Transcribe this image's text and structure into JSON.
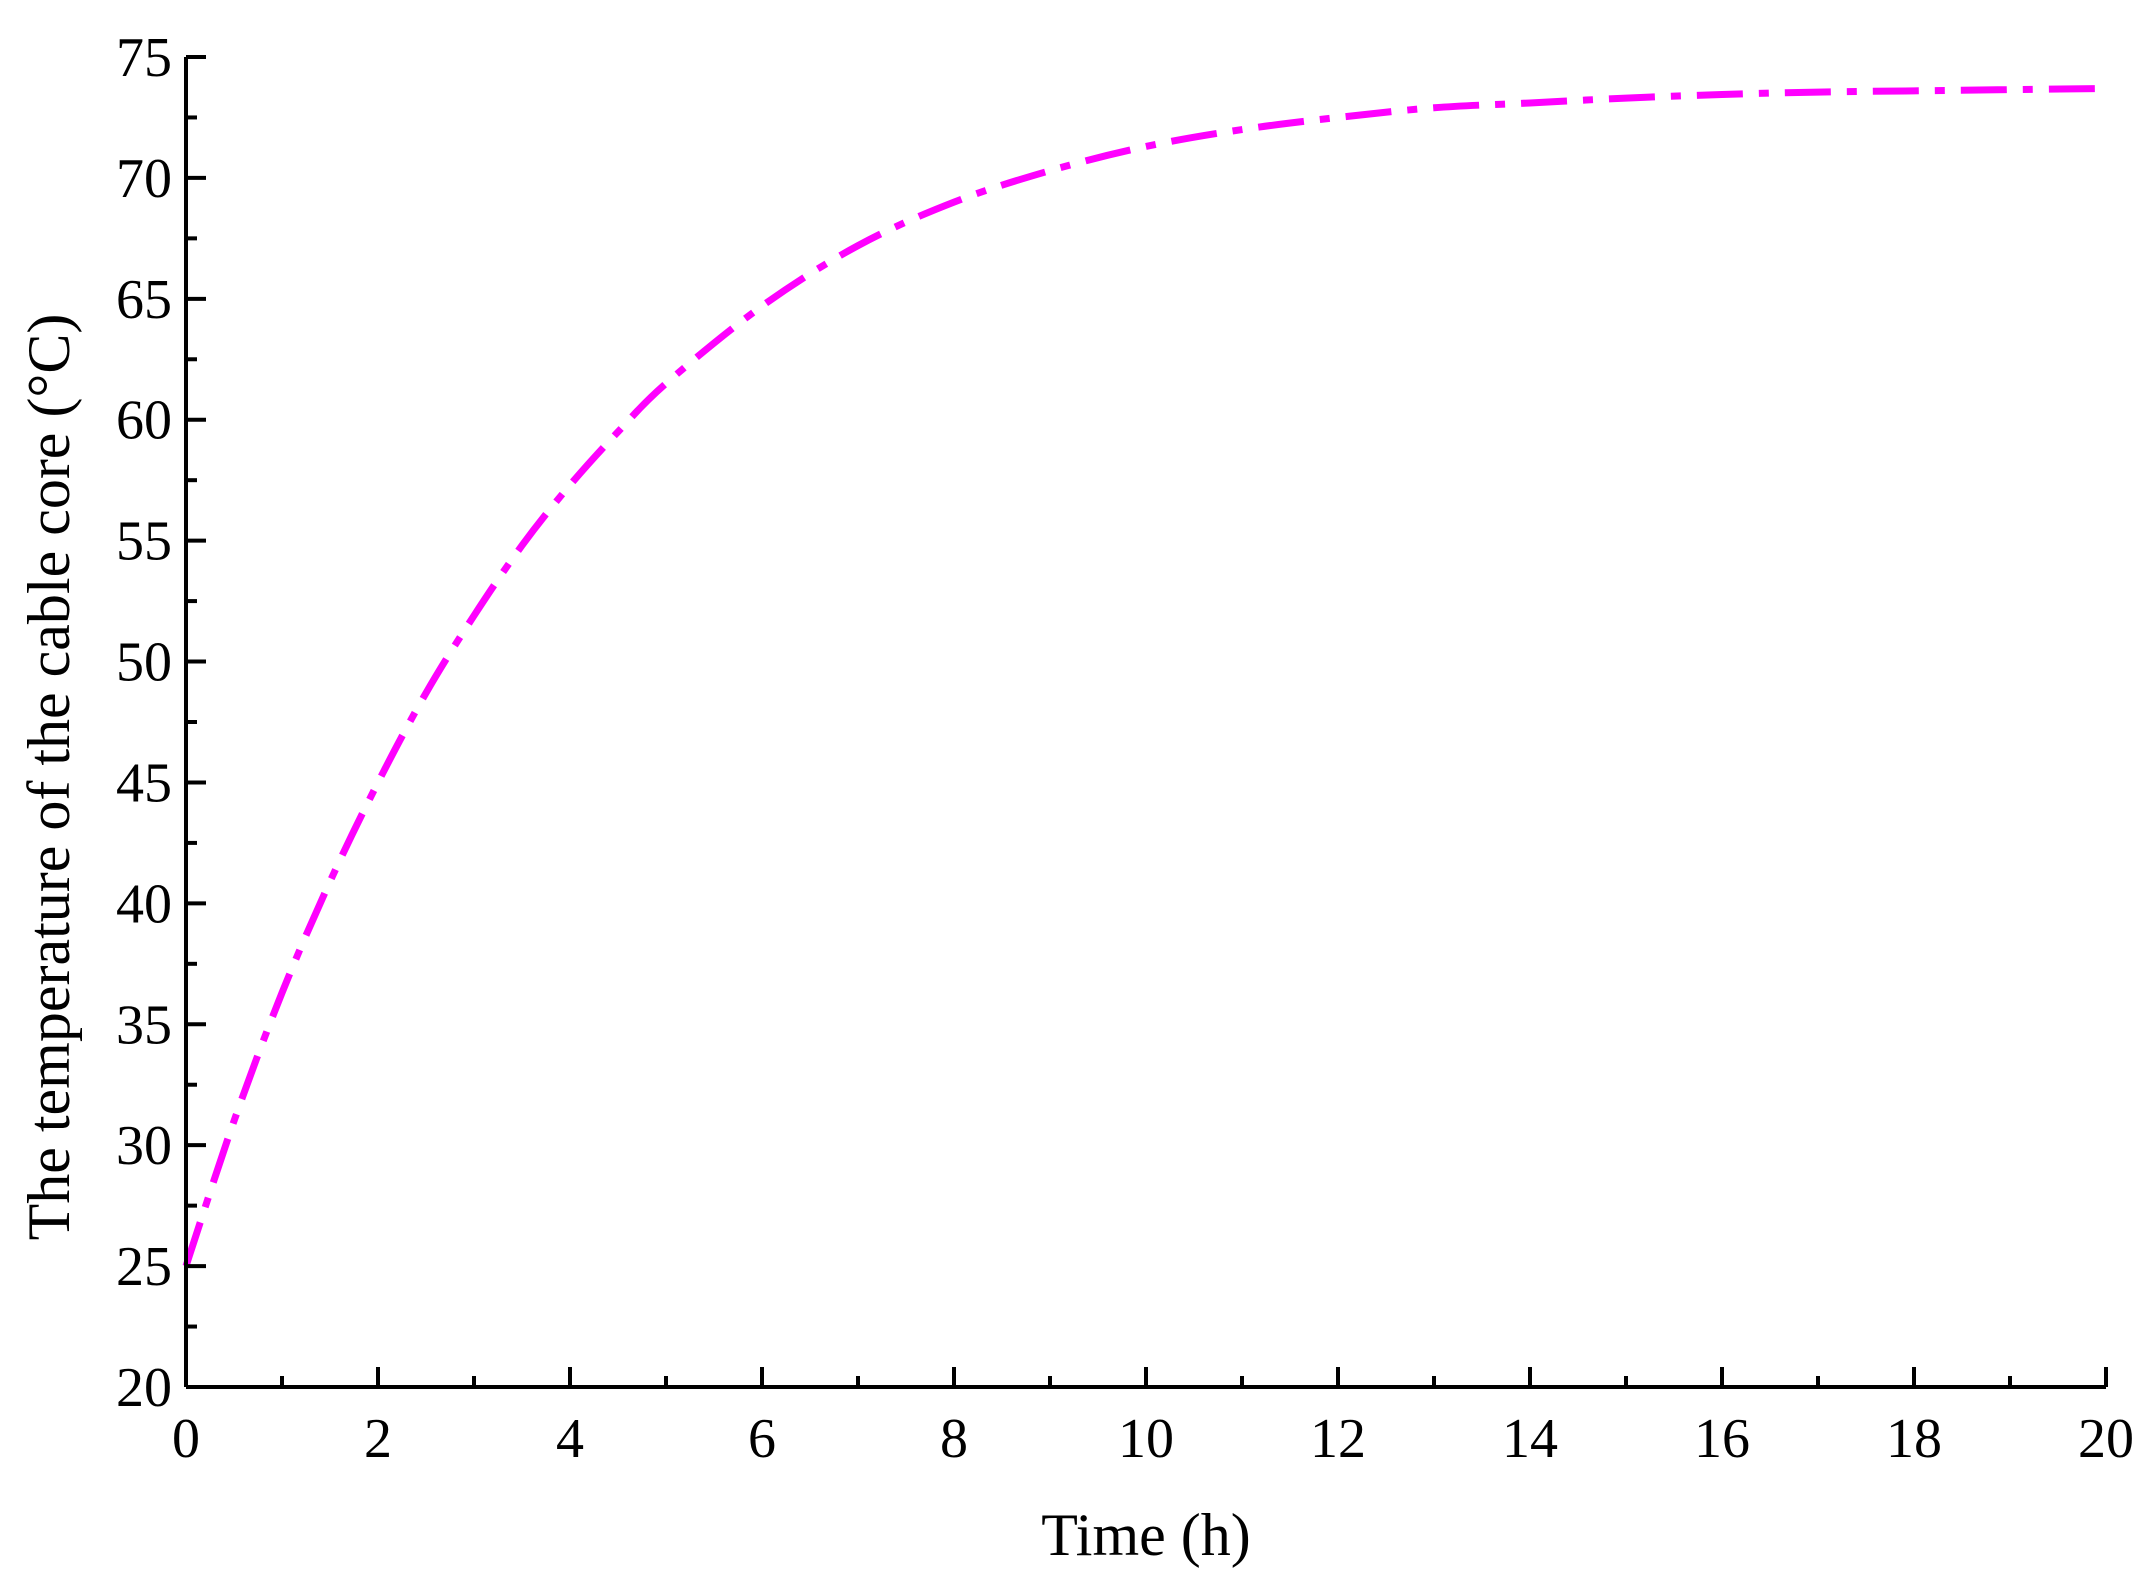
{
  "chart_data": {
    "type": "line",
    "xlabel": "Time (h)",
    "ylabel": "The temperature of the cable core (°C)",
    "xlim": [
      0,
      20
    ],
    "ylim": [
      20,
      75
    ],
    "xticks": [
      0,
      2,
      4,
      6,
      8,
      10,
      12,
      14,
      16,
      18,
      20
    ],
    "yticks": [
      20,
      25,
      30,
      35,
      40,
      45,
      50,
      55,
      60,
      65,
      70,
      75
    ],
    "grid": false,
    "legend": "none",
    "series": [
      {
        "color": "#ff00ff",
        "line_style": "dash-dot",
        "x": [
          0,
          0.5,
          1,
          1.5,
          2,
          2.5,
          3,
          3.5,
          4,
          4.5,
          5,
          6,
          7,
          8,
          9,
          10,
          11,
          12,
          13,
          14,
          15,
          16,
          17,
          18,
          19,
          20
        ],
        "y": [
          25.0,
          31.0,
          36.3,
          40.9,
          45.0,
          48.7,
          51.9,
          54.8,
          57.3,
          59.5,
          61.5,
          64.7,
          67.2,
          69.0,
          70.3,
          71.3,
          72.0,
          72.5,
          72.9,
          73.1,
          73.3,
          73.45,
          73.55,
          73.6,
          73.65,
          73.7
        ]
      }
    ]
  }
}
